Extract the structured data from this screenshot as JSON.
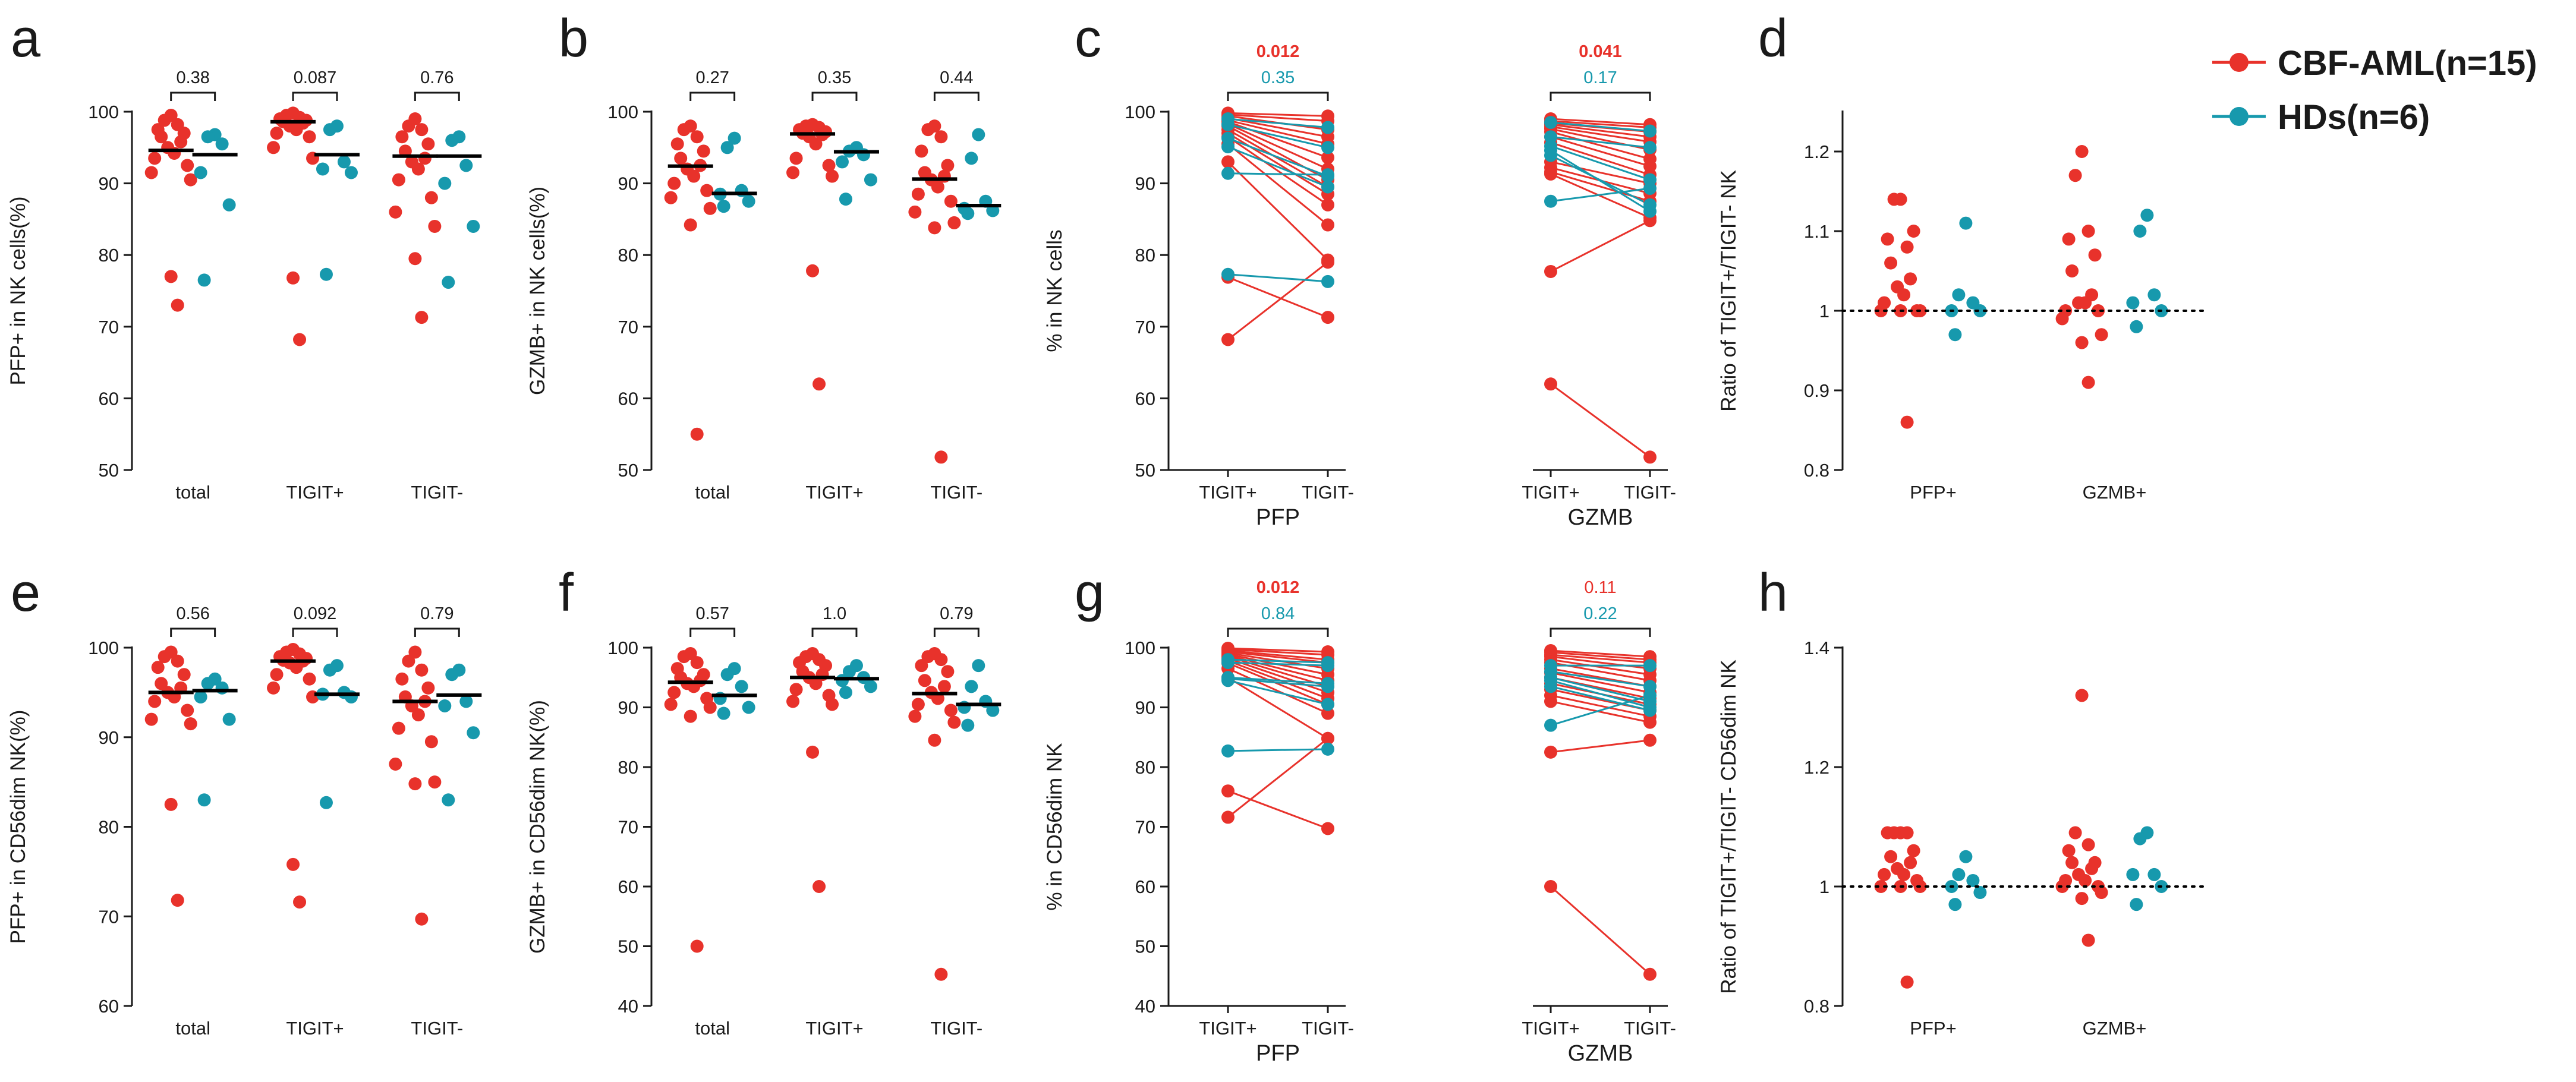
{
  "colors": {
    "cbf": "#e8322b",
    "hd": "#1799ad",
    "axis": "#1a1a1a"
  },
  "legend": {
    "cbf": "CBF-AML(n=15)",
    "hd": "HDs(n=6)"
  },
  "chart_data": [
    {
      "id": "a",
      "type": "scatter",
      "label": "a",
      "ylabel": "PFP+ in NK cells(%)",
      "ylim": [
        50,
        100
      ],
      "yticks": [
        50,
        60,
        70,
        80,
        90,
        100
      ],
      "categories": [
        "total",
        "TIGIT+",
        "TIGIT-"
      ],
      "pvalues": [
        {
          "text": "0.38"
        },
        {
          "text": "0.087"
        },
        {
          "text": "0.76"
        }
      ],
      "groups": [
        {
          "cbf": [
            99.5,
            98.8,
            98.2,
            97.5,
            97.0,
            96.5,
            95.8,
            95.0,
            94.2,
            93.5,
            92.5,
            91.5,
            90.5,
            77.0,
            73.0
          ],
          "cbf_median": 94.6,
          "hd": [
            96.8,
            96.5,
            95.5,
            91.5,
            87.0,
            76.5
          ],
          "hd_median": 94.0
        },
        {
          "cbf": [
            99.8,
            99.5,
            99.2,
            99.0,
            98.8,
            98.6,
            98.4,
            98.0,
            97.5,
            97.0,
            96.5,
            95.0,
            93.5,
            76.8,
            68.2
          ],
          "cbf_median": 98.6,
          "hd": [
            98.0,
            97.5,
            93.0,
            92.0,
            91.5,
            77.3
          ],
          "hd_median": 94.0
        },
        {
          "cbf": [
            99.0,
            98.0,
            97.5,
            96.5,
            95.5,
            94.5,
            93.5,
            93.0,
            92.0,
            90.5,
            88.0,
            86.0,
            84.0,
            79.5,
            71.3
          ],
          "cbf_median": 93.8,
          "hd": [
            96.5,
            96.0,
            92.5,
            90.0,
            84.0,
            76.2
          ],
          "hd_median": 93.8
        }
      ]
    },
    {
      "id": "b",
      "type": "scatter",
      "label": "b",
      "ylabel": "GZMB+ in NK cells(%)",
      "ylim": [
        50,
        100
      ],
      "yticks": [
        50,
        60,
        70,
        80,
        90,
        100
      ],
      "categories": [
        "total",
        "TIGIT+",
        "TIGIT-"
      ],
      "pvalues": [
        {
          "text": "0.27"
        },
        {
          "text": "0.35"
        },
        {
          "text": "0.44"
        }
      ],
      "groups": [
        {
          "cbf": [
            98.0,
            97.5,
            96.5,
            95.5,
            94.5,
            93.5,
            92.5,
            92.0,
            91.0,
            90.0,
            89.0,
            88.0,
            86.5,
            84.2,
            55.0
          ],
          "cbf_median": 92.4,
          "hd": [
            96.3,
            95.0,
            89.0,
            88.5,
            87.5,
            86.8
          ],
          "hd_median": 88.6
        },
        {
          "cbf": [
            98.2,
            98.0,
            97.8,
            97.5,
            97.2,
            97.0,
            96.8,
            96.5,
            95.5,
            93.5,
            92.5,
            91.5,
            91.0,
            77.8,
            62.0
          ],
          "cbf_median": 96.9,
          "hd": [
            95.0,
            94.5,
            94.0,
            93.0,
            90.5,
            87.8
          ],
          "hd_median": 94.4
        },
        {
          "cbf": [
            98.0,
            97.5,
            96.5,
            94.5,
            92.5,
            91.5,
            91.0,
            90.5,
            89.5,
            88.5,
            87.5,
            86.0,
            84.5,
            83.8,
            51.8
          ],
          "cbf_median": 90.6,
          "hd": [
            96.8,
            93.5,
            87.5,
            86.5,
            86.2,
            85.8
          ],
          "hd_median": 86.9
        }
      ]
    },
    {
      "id": "c",
      "type": "line",
      "label": "c",
      "ylabel": "% in NK cells",
      "ylim": [
        50,
        100
      ],
      "yticks": [
        50,
        60,
        70,
        80,
        90,
        100
      ],
      "ticks": [
        "TIGIT+",
        "TIGIT-",
        "TIGIT+",
        "TIGIT-"
      ],
      "sublabels": [
        "PFP",
        "GZMB"
      ],
      "pvalues": [
        {
          "cbf": "0.012",
          "hd": "0.35",
          "cbf_bold": true
        },
        {
          "cbf": "0.041",
          "hd": "0.17",
          "cbf_bold": true
        }
      ],
      "pairs": [
        {
          "cbf": [
            [
              99.8,
              99.4
            ],
            [
              99.6,
              98.7
            ],
            [
              99.4,
              97.5
            ],
            [
              99.1,
              96.5
            ],
            [
              98.8,
              95.5
            ],
            [
              98.6,
              93.6
            ],
            [
              98.3,
              92.0
            ],
            [
              98.0,
              90.5
            ],
            [
              97.5,
              89.5
            ],
            [
              97.0,
              88.5
            ],
            [
              96.5,
              87.0
            ],
            [
              95.5,
              84.2
            ],
            [
              93.0,
              79.3
            ],
            [
              76.9,
              71.3
            ],
            [
              68.2,
              79.0
            ]
          ],
          "hd": [
            [
              99.0,
              97.8
            ],
            [
              98.2,
              95.0
            ],
            [
              96.3,
              91.0
            ],
            [
              95.1,
              89.5
            ],
            [
              91.4,
              91.2
            ],
            [
              77.3,
              76.3
            ]
          ]
        },
        {
          "cbf": [
            [
              99.0,
              98.2
            ],
            [
              98.7,
              97.8
            ],
            [
              98.4,
              97.2
            ],
            [
              98.2,
              96.5
            ],
            [
              97.9,
              95.8
            ],
            [
              97.6,
              94.7
            ],
            [
              97.2,
              93.4
            ],
            [
              96.5,
              92.4
            ],
            [
              95.7,
              91.2
            ],
            [
              93.0,
              90.0
            ],
            [
              92.2,
              88.6
            ],
            [
              91.6,
              87.5
            ],
            [
              91.3,
              85.2
            ],
            [
              77.7,
              84.8
            ],
            [
              62.0,
              51.8
            ]
          ],
          "hd": [
            [
              98.5,
              97.3
            ],
            [
              96.5,
              95.0
            ],
            [
              95.2,
              90.5
            ],
            [
              94.6,
              86.1
            ],
            [
              93.9,
              87.0
            ],
            [
              87.5,
              89.3
            ]
          ]
        }
      ]
    },
    {
      "id": "d",
      "type": "scatter",
      "label": "d",
      "ylabel": "Ratio of TIGIT+/TIGIT- NK",
      "ylim": [
        0.8,
        1.25
      ],
      "yticks": [
        0.8,
        0.9,
        1.0,
        1.1,
        1.2
      ],
      "refline": 1.0,
      "categories": [
        "PFP+",
        "GZMB+"
      ],
      "groups": [
        {
          "cbf": [
            1.14,
            1.14,
            1.08,
            1.09,
            1.1,
            1.06,
            1.04,
            1.03,
            1.02,
            1.01,
            1.0,
            1.0,
            1.0,
            1.0,
            0.86
          ],
          "hd": [
            1.11,
            1.02,
            1.01,
            1.0,
            1.0,
            0.97
          ]
        },
        {
          "cbf": [
            1.2,
            1.17,
            1.1,
            1.09,
            1.07,
            1.05,
            1.02,
            1.01,
            1.01,
            1.0,
            1.0,
            0.99,
            0.97,
            0.96,
            0.91
          ],
          "hd": [
            1.12,
            1.1,
            1.02,
            1.01,
            1.0,
            0.98
          ]
        }
      ]
    },
    {
      "id": "e",
      "type": "scatter",
      "label": "e",
      "ylabel": "PFP+ in CD56dim NK(%)",
      "ylim": [
        60,
        100
      ],
      "yticks": [
        60,
        70,
        80,
        90,
        100
      ],
      "categories": [
        "total",
        "TIGIT+",
        "TIGIT-"
      ],
      "pvalues": [
        {
          "text": "0.56"
        },
        {
          "text": "0.092"
        },
        {
          "text": "0.79"
        }
      ],
      "groups": [
        {
          "cbf": [
            99.5,
            99.0,
            98.5,
            97.8,
            97.0,
            96.0,
            95.5,
            95.0,
            94.5,
            94.0,
            93.0,
            92.0,
            91.5,
            82.5,
            71.8
          ],
          "cbf_median": 95.0,
          "hd": [
            96.5,
            96.0,
            95.5,
            94.5,
            92.0,
            83.0
          ],
          "hd_median": 95.2
        },
        {
          "cbf": [
            99.8,
            99.5,
            99.3,
            99.0,
            98.8,
            98.6,
            98.5,
            98.3,
            97.8,
            97.0,
            96.5,
            95.5,
            94.5,
            75.8,
            71.6
          ],
          "cbf_median": 98.5,
          "hd": [
            98.0,
            97.5,
            95.0,
            94.8,
            94.5,
            82.7
          ],
          "hd_median": 94.8
        },
        {
          "cbf": [
            99.5,
            98.5,
            97.5,
            96.5,
            95.5,
            94.5,
            94.0,
            93.5,
            92.5,
            91.0,
            89.5,
            87.0,
            85.0,
            84.8,
            69.7
          ],
          "cbf_median": 94.0,
          "hd": [
            97.5,
            97.0,
            94.0,
            93.5,
            90.5,
            83.0
          ],
          "hd_median": 94.7
        }
      ]
    },
    {
      "id": "f",
      "type": "scatter",
      "label": "f",
      "ylabel": "GZMB+ in CD56dim NK(%)",
      "ylim": [
        40,
        100
      ],
      "yticks": [
        40,
        50,
        60,
        70,
        80,
        90,
        100
      ],
      "categories": [
        "total",
        "TIGIT+",
        "TIGIT-"
      ],
      "pvalues": [
        {
          "text": "0.57"
        },
        {
          "text": "1.0"
        },
        {
          "text": "0.79"
        }
      ],
      "groups": [
        {
          "cbf": [
            99.0,
            98.5,
            97.5,
            96.5,
            95.5,
            95.0,
            94.5,
            94.0,
            93.5,
            92.5,
            91.5,
            90.5,
            90.0,
            88.5,
            50.0
          ],
          "cbf_median": 94.2,
          "hd": [
            96.5,
            95.5,
            93.5,
            91.5,
            90.0,
            89.0
          ],
          "hd_median": 92.0
        },
        {
          "cbf": [
            99.0,
            98.5,
            98.0,
            97.5,
            97.0,
            96.0,
            95.5,
            95.0,
            94.0,
            93.0,
            92.0,
            91.0,
            90.5,
            82.5,
            60.0
          ],
          "cbf_median": 95.0,
          "hd": [
            97.0,
            96.0,
            95.0,
            94.5,
            93.5,
            92.5
          ],
          "hd_median": 94.8
        },
        {
          "cbf": [
            99.0,
            98.5,
            98.0,
            97.0,
            96.0,
            94.5,
            93.5,
            92.5,
            91.5,
            90.5,
            89.5,
            88.5,
            87.5,
            84.5,
            45.3
          ],
          "cbf_median": 92.3,
          "hd": [
            97.0,
            93.5,
            91.0,
            90.0,
            89.5,
            87.0
          ],
          "hd_median": 90.5
        }
      ]
    },
    {
      "id": "g",
      "type": "line",
      "label": "g",
      "ylabel": "% in CD56dim NK",
      "ylim": [
        40,
        100
      ],
      "yticks": [
        40,
        50,
        60,
        70,
        80,
        90,
        100
      ],
      "ticks": [
        "TIGIT+",
        "TIGIT-",
        "TIGIT+",
        "TIGIT-"
      ],
      "sublabels": [
        "PFP",
        "GZMB"
      ],
      "pvalues": [
        {
          "cbf": "0.012",
          "hd": "0.84",
          "cbf_bold": true
        },
        {
          "cbf": "0.11",
          "hd": "0.22",
          "cbf_bold": false
        }
      ],
      "pairs": [
        {
          "cbf": [
            [
              99.9,
              99.3
            ],
            [
              99.7,
              98.8
            ],
            [
              99.5,
              98.0
            ],
            [
              99.3,
              97.5
            ],
            [
              99.1,
              96.5
            ],
            [
              98.9,
              95.5
            ],
            [
              98.7,
              94.5
            ],
            [
              98.5,
              93.5
            ],
            [
              98.2,
              92.5
            ],
            [
              97.8,
              91.5
            ],
            [
              97.4,
              90.5
            ],
            [
              96.5,
              89.0
            ],
            [
              95.0,
              84.8
            ],
            [
              76.0,
              69.7
            ],
            [
              71.6,
              84.8
            ]
          ],
          "hd": [
            [
              98.0,
              97.5
            ],
            [
              97.5,
              97.0
            ],
            [
              95.0,
              94.0
            ],
            [
              94.8,
              93.5
            ],
            [
              94.5,
              90.5
            ],
            [
              82.7,
              83.0
            ]
          ]
        },
        {
          "cbf": [
            [
              99.5,
              98.5
            ],
            [
              99.2,
              98.0
            ],
            [
              98.8,
              97.5
            ],
            [
              98.5,
              96.5
            ],
            [
              98.0,
              95.5
            ],
            [
              97.5,
              94.5
            ],
            [
              96.5,
              93.5
            ],
            [
              95.8,
              92.5
            ],
            [
              95.0,
              91.5
            ],
            [
              94.0,
              90.5
            ],
            [
              93.0,
              89.5
            ],
            [
              92.0,
              88.5
            ],
            [
              91.0,
              87.5
            ],
            [
              82.5,
              84.5
            ],
            [
              60.0,
              45.3
            ]
          ],
          "hd": [
            [
              97.0,
              97.0
            ],
            [
              96.0,
              93.5
            ],
            [
              95.0,
              91.0
            ],
            [
              94.5,
              90.0
            ],
            [
              93.5,
              89.5
            ],
            [
              87.0,
              92.0
            ]
          ]
        }
      ]
    },
    {
      "id": "h",
      "type": "scatter",
      "label": "h",
      "ylabel": "Ratio of TIGIT+/TIGIT- CD56dim NK",
      "ylim": [
        0.8,
        1.4
      ],
      "yticks": [
        0.8,
        1.0,
        1.2,
        1.4
      ],
      "refline": 1.0,
      "categories": [
        "PFP+",
        "GZMB+"
      ],
      "groups": [
        {
          "cbf": [
            1.09,
            1.09,
            1.09,
            1.09,
            1.06,
            1.05,
            1.04,
            1.03,
            1.02,
            1.02,
            1.01,
            1.0,
            1.0,
            1.0,
            0.84
          ],
          "hd": [
            1.05,
            1.02,
            1.01,
            1.0,
            0.99,
            0.97
          ]
        },
        {
          "cbf": [
            1.32,
            1.09,
            1.07,
            1.06,
            1.04,
            1.04,
            1.03,
            1.02,
            1.01,
            1.01,
            1.0,
            1.0,
            0.99,
            0.98,
            0.91
          ],
          "hd": [
            1.09,
            1.08,
            1.02,
            1.02,
            1.0,
            0.97
          ]
        }
      ]
    }
  ]
}
